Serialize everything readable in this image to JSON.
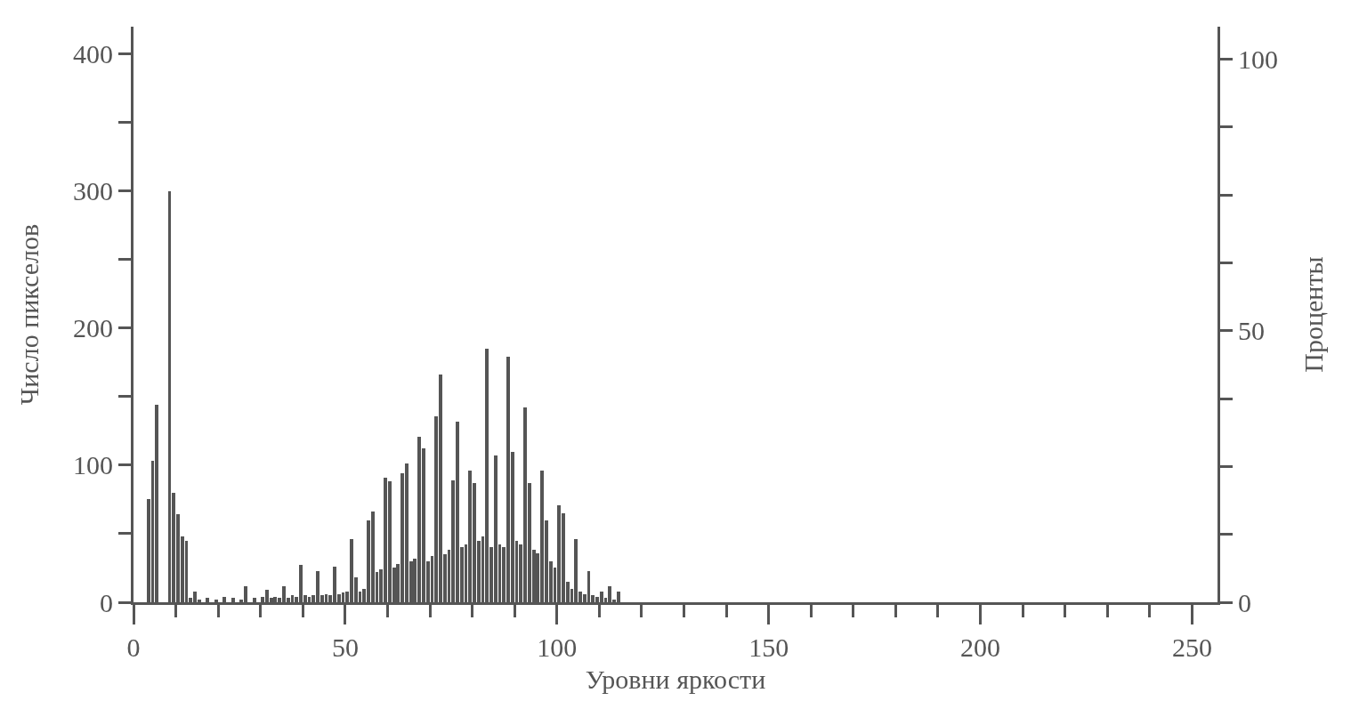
{
  "chart_data": {
    "type": "histogram",
    "xlabel": "Уровни яркости",
    "ylabel": "Число пикселов",
    "y2label": "Проценты",
    "bins": [
      0,
      1,
      2,
      3,
      4,
      5,
      6,
      7,
      8,
      9,
      10,
      11,
      12,
      13,
      14,
      15,
      16,
      17,
      18,
      19,
      20,
      21,
      22,
      23,
      24,
      25,
      26,
      27,
      28,
      29,
      30,
      31,
      32,
      33,
      34,
      35,
      36,
      37,
      38,
      39,
      40,
      41,
      42,
      43,
      44,
      45,
      46,
      47,
      48,
      49,
      50,
      51,
      52,
      53,
      54,
      55,
      56,
      57,
      58,
      59,
      60,
      61,
      62,
      63,
      64,
      65,
      66,
      67,
      68,
      69,
      70,
      71,
      72,
      73,
      74,
      75,
      76,
      77,
      78,
      79,
      80,
      81,
      82,
      83,
      84,
      85,
      86,
      87,
      88,
      89,
      90,
      91,
      92,
      93,
      94,
      95,
      96,
      97,
      98,
      99,
      100,
      101,
      102,
      103,
      104,
      105,
      106,
      107,
      108,
      109,
      110,
      111,
      112,
      113,
      114,
      115,
      116
    ],
    "values": [
      0,
      0,
      0,
      75,
      103,
      144,
      0,
      0,
      300,
      80,
      64,
      48,
      45,
      3,
      8,
      2,
      0,
      3,
      0,
      2,
      0,
      4,
      0,
      3,
      0,
      2,
      12,
      0,
      3,
      0,
      4,
      9,
      3,
      4,
      3,
      12,
      3,
      5,
      4,
      27,
      5,
      4,
      5,
      23,
      5,
      6,
      5,
      26,
      6,
      7,
      8,
      46,
      18,
      8,
      10,
      60,
      66,
      22,
      24,
      91,
      88,
      25,
      28,
      94,
      101,
      30,
      32,
      121,
      112,
      30,
      34,
      136,
      166,
      35,
      38,
      89,
      132,
      40,
      42,
      96,
      87,
      45,
      48,
      185,
      40,
      107,
      42,
      40,
      179,
      110,
      45,
      42,
      142,
      87,
      38,
      36,
      96,
      60,
      30,
      25,
      71,
      65,
      15,
      10,
      46,
      8,
      6,
      23,
      5,
      4,
      8,
      3,
      12,
      2,
      8,
      0
    ],
    "color": "#555555",
    "xlim": [
      0,
      256
    ],
    "xticks": [
      0,
      {
        "value": 10,
        "label": null
      },
      {
        "value": 20,
        "label": null
      },
      {
        "value": 30,
        "label": null
      },
      {
        "value": 40,
        "label": null
      },
      50,
      {
        "value": 60,
        "label": null
      },
      {
        "value": 70,
        "label": null
      },
      {
        "value": 80,
        "label": null
      },
      {
        "value": 90,
        "label": null
      },
      100,
      {
        "value": 110,
        "label": null
      },
      {
        "value": 120,
        "label": null
      },
      {
        "value": 130,
        "label": null
      },
      {
        "value": 140,
        "label": null
      },
      150,
      {
        "value": 160,
        "label": null
      },
      {
        "value": 170,
        "label": null
      },
      {
        "value": 180,
        "label": null
      },
      {
        "value": 190,
        "label": null
      },
      200,
      {
        "value": 210,
        "label": null
      },
      {
        "value": 220,
        "label": null
      },
      {
        "value": 230,
        "label": null
      },
      {
        "value": 240,
        "label": null
      },
      250
    ],
    "ylim": [
      0,
      420
    ],
    "yticks": [
      0,
      {
        "value": 50,
        "label": null
      },
      100,
      {
        "value": 150,
        "label": null
      },
      200,
      {
        "value": 250,
        "label": null
      },
      300,
      {
        "value": 350,
        "label": null
      },
      400
    ],
    "y2lim": [
      0,
      106
    ],
    "y2ticks": [
      0,
      {
        "value": 12.5,
        "label": null
      },
      {
        "value": 25,
        "label": null
      },
      {
        "value": 37.5,
        "label": null
      },
      50,
      {
        "value": 62.5,
        "label": null
      },
      {
        "value": 75,
        "label": null
      },
      {
        "value": 87.5,
        "label": null
      },
      100
    ],
    "grid": false
  }
}
